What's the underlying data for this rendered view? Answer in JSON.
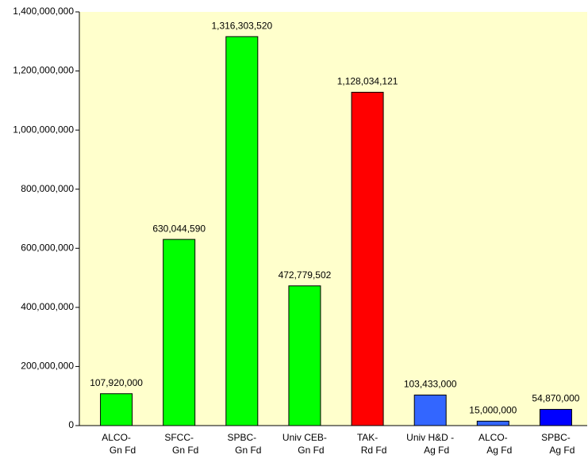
{
  "chart_data": {
    "type": "bar",
    "categories": [
      [
        "ALCO-",
        "Gn Fd"
      ],
      [
        "SFCC-",
        "Gn Fd"
      ],
      [
        "SPBC-",
        "Gn Fd"
      ],
      [
        "Univ CEB-",
        "Gn Fd"
      ],
      [
        "TAK-",
        "Rd Fd"
      ],
      [
        "Univ H&D -",
        "Ag Fd"
      ],
      [
        "ALCO-",
        "Ag Fd"
      ],
      [
        "SPBC-",
        "Ag Fd"
      ]
    ],
    "values": [
      107920000,
      630044590,
      1316303520,
      472779502,
      1128034121,
      103433000,
      15000000,
      54870000
    ],
    "value_labels": [
      "107,920,000",
      "630,044,590",
      "1,316,303,520",
      "472,779,502",
      "1,128,034,121",
      "103,433,000",
      "15,000,000",
      "54,870,000"
    ],
    "colors": [
      "#00ff00",
      "#00ff00",
      "#00ff00",
      "#00ff00",
      "#ff0000",
      "#3366ff",
      "#3366ff",
      "#0000ff"
    ],
    "ylim": [
      0,
      1400000000
    ],
    "yticks": [
      0,
      {
        "value": 200000000,
        "label": "200,000,000"
      },
      {
        "value": 400000000,
        "label": "400,000,000"
      },
      {
        "value": 600000000,
        "label": "600,000,000"
      },
      {
        "value": 800000000,
        "label": "800,000,000"
      },
      {
        "value": 1000000000,
        "label": "1,000,000,000"
      },
      {
        "value": 1200000000,
        "label": "1,200,000,000"
      },
      {
        "value": 1400000000,
        "label": "1,400,000,000"
      }
    ],
    "background": "#ffffcc"
  }
}
